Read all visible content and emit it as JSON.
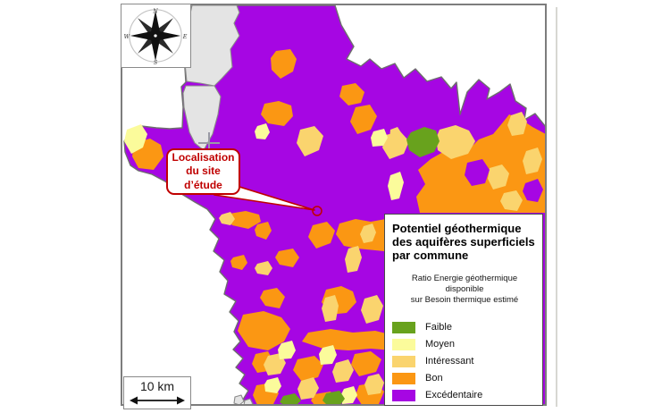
{
  "figure": {
    "type": "choropleth-map",
    "compass": {
      "north": "N",
      "south": "S",
      "east": "E",
      "west": "W"
    },
    "callout": {
      "text": "Localisation du site d’étude",
      "accent_color": "#C00000"
    },
    "scale_bar": {
      "label": "10 km"
    },
    "map_colors": {
      "sea": "#FFFFFF",
      "no_data": "#E4E4E4",
      "coast_outline": "#6E6E6E"
    }
  },
  "legend": {
    "title_lines": [
      "Potentiel géothermique",
      "des aquifères superficiels",
      "par commune"
    ],
    "subtitle_lines": [
      "Ratio Energie géothermique",
      "disponible",
      "sur Besoin thermique estimé"
    ],
    "items": [
      {
        "label": "Faible",
        "color": "#68A21D"
      },
      {
        "label": "Moyen",
        "color": "#FBFB9B"
      },
      {
        "label": "Intéressant",
        "color": "#FAD46E"
      },
      {
        "label": "Bon",
        "color": "#FB9713"
      },
      {
        "label": "Excédentaire",
        "color": "#A606E3"
      }
    ]
  }
}
